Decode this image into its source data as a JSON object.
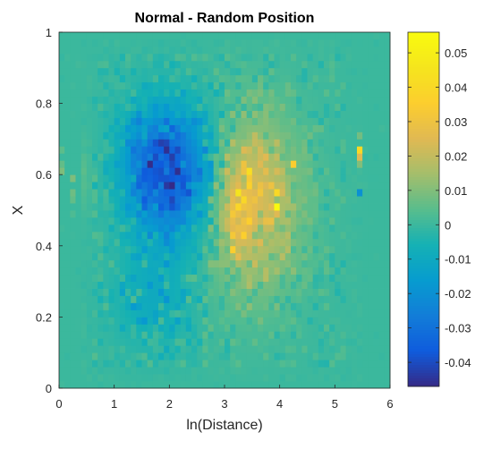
{
  "chart_data": {
    "type": "heatmap",
    "title": "Normal - Random Position",
    "xlabel": "ln(Distance)",
    "ylabel": "X",
    "xlim": [
      0,
      6
    ],
    "ylim": [
      0,
      1
    ],
    "xticks": [
      "0",
      "1",
      "2",
      "3",
      "4",
      "5",
      "6"
    ],
    "yticks": [
      "0",
      "0.2",
      "0.4",
      "0.6",
      "0.8",
      "1"
    ],
    "grid": false,
    "colormap": "parula",
    "colorbar": {
      "min": -0.047,
      "max": 0.056,
      "ticks": [
        "-0.04",
        "-0.03",
        "-0.02",
        "-0.01",
        "0",
        "0.01",
        "0.02",
        "0.03",
        "0.04",
        "0.05"
      ],
      "tick_values": [
        -0.04,
        -0.03,
        -0.02,
        -0.01,
        0,
        0.01,
        0.02,
        0.03,
        0.04,
        0.05
      ]
    },
    "grid_size": {
      "nx": 60,
      "ny": 50
    },
    "background_value": 0.0,
    "features": [
      {
        "kind": "blob",
        "x": 2.1,
        "y": 0.6,
        "sx": 0.55,
        "sy": 0.13,
        "amp": -0.034
      },
      {
        "kind": "blob",
        "x": 1.6,
        "y": 0.64,
        "sx": 0.35,
        "sy": 0.1,
        "amp": -0.012
      },
      {
        "kind": "blob",
        "x": 3.5,
        "y": 0.52,
        "sx": 0.6,
        "sy": 0.17,
        "amp": 0.024
      },
      {
        "kind": "blob",
        "x": 3.2,
        "y": 0.5,
        "sx": 0.2,
        "sy": 0.08,
        "amp": 0.012
      },
      {
        "kind": "blob",
        "x": 0.2,
        "y": 0.6,
        "sx": 0.2,
        "sy": 0.07,
        "amp": 0.01
      },
      {
        "kind": "blob",
        "x": 1.7,
        "y": 0.25,
        "sx": 0.5,
        "sy": 0.1,
        "amp": -0.009
      }
    ],
    "noise_amplitude": 0.008,
    "special_cells": [
      {
        "x": 5.45,
        "y": 0.66,
        "value": 0.04
      },
      {
        "x": 5.45,
        "y": 0.64,
        "value": 0.025
      },
      {
        "x": 5.45,
        "y": 0.55,
        "value": -0.02
      },
      {
        "x": 5.45,
        "y": 0.62,
        "value": 0.01
      },
      {
        "x": 5.45,
        "y": 0.7,
        "value": 0.008
      },
      {
        "x": 3.95,
        "y": 0.5,
        "value": 0.055
      },
      {
        "x": 3.3,
        "y": 0.55,
        "value": 0.045
      },
      {
        "x": 3.45,
        "y": 0.61,
        "value": 0.042
      },
      {
        "x": 4.25,
        "y": 0.62,
        "value": 0.035
      },
      {
        "x": 3.95,
        "y": 0.54,
        "value": 0.04
      },
      {
        "x": 1.95,
        "y": 0.58,
        "value": -0.044
      },
      {
        "x": 2.15,
        "y": 0.6,
        "value": -0.046
      },
      {
        "x": 2.0,
        "y": 0.62,
        "value": -0.04
      },
      {
        "x": 2.35,
        "y": 0.55,
        "value": -0.038
      },
      {
        "x": 3.1,
        "y": 0.38,
        "value": 0.035
      }
    ]
  }
}
